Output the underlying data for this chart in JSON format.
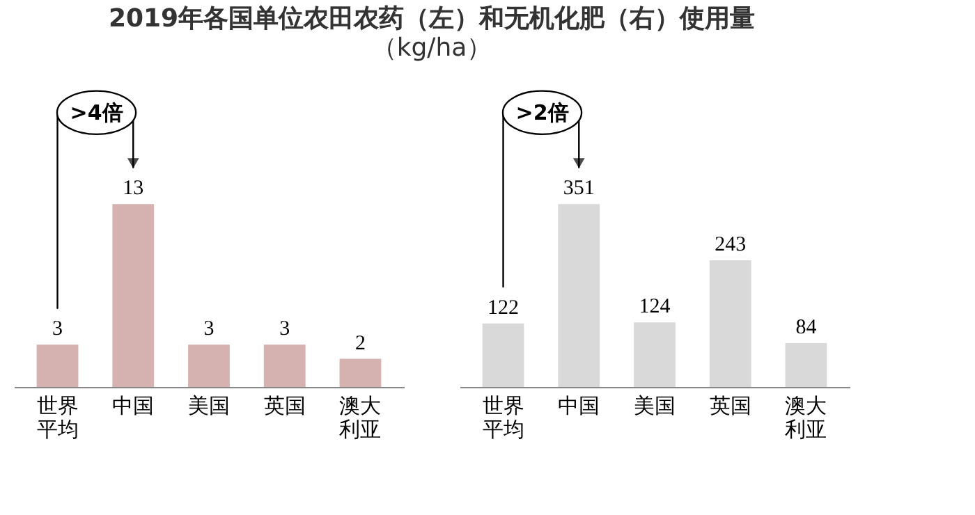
{
  "chart_data": [
    {
      "type": "bar",
      "title": "2019年各国单位农田农药（左）和无机化肥（右）使用量",
      "subtitle": "（kg/ha）",
      "categories": [
        "世界平均",
        "中国",
        "美国",
        "英国",
        "澳大利亚"
      ],
      "values": [
        3,
        13,
        3,
        3,
        2
      ],
      "color": "#d5b1b0",
      "data_labels": true,
      "annotations": [
        ">4倍"
      ]
    },
    {
      "type": "bar",
      "categories": [
        "世界平均",
        "中国",
        "美国",
        "英国",
        "澳大利亚"
      ],
      "values": [
        122,
        351,
        124,
        243,
        84
      ],
      "color": "#d9d9d9",
      "data_labels": true,
      "annotations": [
        ">2倍"
      ]
    }
  ]
}
